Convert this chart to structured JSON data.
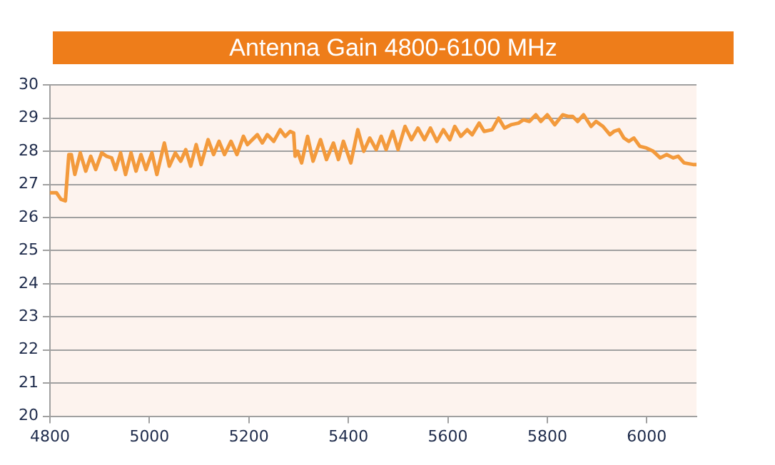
{
  "chart_data": {
    "type": "line",
    "title": "Antenna Gain 4800-6100 MHz",
    "x": [
      4800,
      4813,
      4822,
      4831,
      4838,
      4843,
      4850,
      4861,
      4872,
      4882,
      4892,
      4904,
      4914,
      4924,
      4932,
      4942,
      4952,
      4963,
      4973,
      4983,
      4993,
      5005,
      5015,
      5030,
      5040,
      5052,
      5063,
      5073,
      5083,
      5094,
      5104,
      5118,
      5129,
      5140,
      5151,
      5164,
      5176,
      5189,
      5197,
      5217,
      5227,
      5237,
      5250,
      5263,
      5273,
      5283,
      5290,
      5293,
      5298,
      5306,
      5318,
      5329,
      5344,
      5356,
      5370,
      5380,
      5390,
      5405,
      5419,
      5431,
      5443,
      5456,
      5466,
      5476,
      5489,
      5500,
      5514,
      5527,
      5540,
      5553,
      5565,
      5578,
      5591,
      5604,
      5614,
      5626,
      5639,
      5649,
      5663,
      5673,
      5689,
      5702,
      5714,
      5727,
      5742,
      5752,
      5764,
      5777,
      5787,
      5800,
      5815,
      5831,
      5843,
      5851,
      5861,
      5873,
      5888,
      5898,
      5912,
      5926,
      5934,
      5944,
      5954,
      5964,
      5974,
      5986,
      5999,
      6013,
      6027,
      6040,
      6053,
      6063,
      6075,
      6093,
      6100
    ],
    "series": [
      {
        "color": "#f39a3c",
        "values": [
          26.75,
          26.75,
          26.55,
          26.5,
          27.9,
          27.9,
          27.3,
          27.95,
          27.4,
          27.85,
          27.45,
          27.95,
          27.85,
          27.8,
          27.45,
          27.95,
          27.3,
          27.95,
          27.4,
          27.9,
          27.45,
          27.95,
          27.3,
          28.25,
          27.55,
          27.95,
          27.7,
          28.05,
          27.55,
          28.2,
          27.6,
          28.35,
          27.9,
          28.3,
          27.9,
          28.3,
          27.9,
          28.45,
          28.2,
          28.5,
          28.25,
          28.5,
          28.3,
          28.65,
          28.45,
          28.6,
          28.55,
          27.85,
          28.0,
          27.65,
          28.45,
          27.7,
          28.35,
          27.75,
          28.25,
          27.75,
          28.3,
          27.65,
          28.65,
          28.0,
          28.4,
          28.05,
          28.45,
          28.05,
          28.6,
          28.05,
          28.75,
          28.35,
          28.7,
          28.35,
          28.7,
          28.3,
          28.65,
          28.35,
          28.75,
          28.45,
          28.65,
          28.5,
          28.85,
          28.6,
          28.65,
          29.0,
          28.7,
          28.8,
          28.85,
          28.95,
          28.9,
          29.1,
          28.9,
          29.1,
          28.8,
          29.1,
          29.05,
          29.05,
          28.9,
          29.1,
          28.75,
          28.9,
          28.75,
          28.5,
          28.6,
          28.65,
          28.4,
          28.3,
          28.4,
          28.15,
          28.1,
          28.0,
          27.8,
          27.9,
          27.8,
          27.85,
          27.65,
          27.6,
          27.6
        ]
      }
    ],
    "xlim": [
      4800,
      6100
    ],
    "xticks": [
      4800,
      5000,
      5200,
      5400,
      5600,
      5800,
      6000
    ],
    "ylim": [
      20,
      30
    ],
    "yticks": [
      20,
      21,
      22,
      23,
      24,
      25,
      26,
      27,
      28,
      29,
      30
    ],
    "grid": "y",
    "legend": false,
    "marker": "none",
    "line_style": "solid"
  }
}
